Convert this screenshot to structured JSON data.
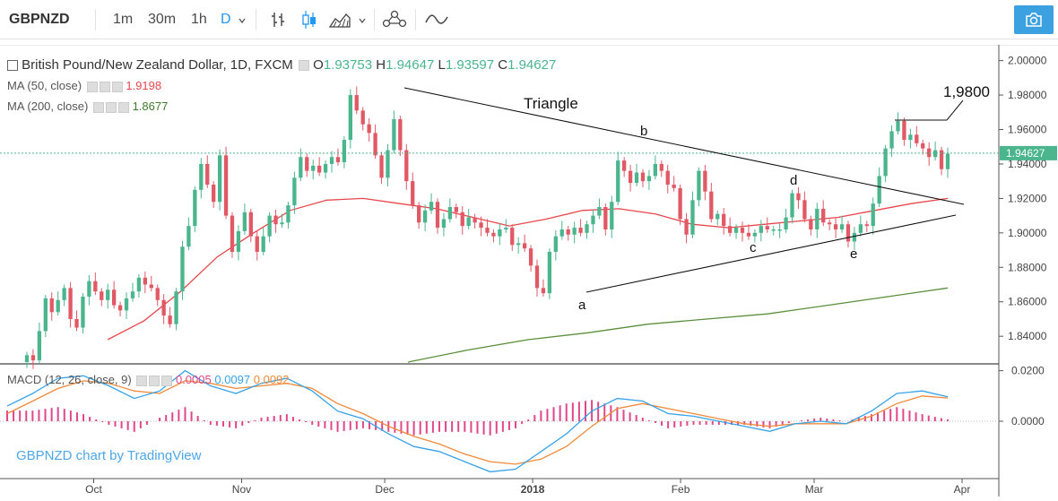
{
  "toolbar": {
    "symbol": "GBPNZD",
    "intervals": [
      "1m",
      "30m",
      "1h",
      "D"
    ],
    "active_interval": "D"
  },
  "legend": {
    "title": "British Pound/New Zealand Dollar, 1D, FXCM",
    "o_label": "O",
    "o_value": "1.93753",
    "h_label": "H",
    "h_value": "1.94647",
    "l_label": "L",
    "l_value": "1.93597",
    "c_label": "C",
    "c_value": "1.94627",
    "ma50_label": "MA (50, close)",
    "ma50_value": "1.9198",
    "ma200_label": "MA (200, close)",
    "ma200_value": "1.8677",
    "macd_label": "MACD (12, 26, close, 9)",
    "macd_v1": "0.0005",
    "macd_v2": "0.0097",
    "macd_v3": "0.0092"
  },
  "watermark": "GBPNZD chart by TradingView",
  "colors": {
    "up": "#4bb58e",
    "down": "#e05965",
    "ma50": "#e8464b",
    "ma200": "#5a8f3b",
    "macd": "#37a2e6",
    "signal": "#f08a3a",
    "hist": "#e0478a",
    "accent": "#2196f3"
  },
  "chart_data": {
    "type": "candlestick",
    "price_axis": {
      "ylim": [
        1.825,
        2.005
      ],
      "ticks": [
        "2.00000",
        "1.98000",
        "1.96000",
        "1.94000",
        "1.92000",
        "1.90000",
        "1.88000",
        "1.86000",
        "1.84000"
      ],
      "last_price": "1.94627"
    },
    "macd_axis": {
      "ylim": [
        -0.022,
        0.022
      ],
      "ticks": [
        "0.0200",
        "0.0000"
      ]
    },
    "x_axis": {
      "start_date": "2017-09-17",
      "end_date": "2018-04-01",
      "labels": [
        {
          "date": "2017-10-01",
          "text": "Oct"
        },
        {
          "date": "2017-11-01",
          "text": "Nov"
        },
        {
          "date": "2017-12-01",
          "text": "Dec"
        },
        {
          "date": "2018-01-01",
          "text": "2018"
        },
        {
          "date": "2018-02-01",
          "text": "Feb"
        },
        {
          "date": "2018-03-01",
          "text": "Mar"
        },
        {
          "date": "2018-04-01",
          "text": "Apr"
        }
      ]
    },
    "closes": [
      1.829,
      1.826,
      1.843,
      1.862,
      1.854,
      1.861,
      1.868,
      1.85,
      1.845,
      1.863,
      1.872,
      1.866,
      1.861,
      1.867,
      1.858,
      1.855,
      1.862,
      1.866,
      1.874,
      1.87,
      1.868,
      1.861,
      1.852,
      1.847,
      1.866,
      1.892,
      1.904,
      1.925,
      1.94,
      1.928,
      1.918,
      1.945,
      1.91,
      1.889,
      1.901,
      1.912,
      1.898,
      1.889,
      1.898,
      1.91,
      1.905,
      1.906,
      1.916,
      1.932,
      1.944,
      1.936,
      1.939,
      1.935,
      1.94,
      1.944,
      1.941,
      1.954,
      1.98,
      1.971,
      1.963,
      1.958,
      1.945,
      1.932,
      1.948,
      1.966,
      1.948,
      1.93,
      1.916,
      1.906,
      1.913,
      1.918,
      1.903,
      1.908,
      1.915,
      1.912,
      1.904,
      1.909,
      1.906,
      1.903,
      1.9,
      1.898,
      1.902,
      1.903,
      1.893,
      1.894,
      1.891,
      1.881,
      1.868,
      1.865,
      1.889,
      1.898,
      1.902,
      1.899,
      1.903,
      1.9,
      1.905,
      1.91,
      1.915,
      1.902,
      1.918,
      1.942,
      1.936,
      1.929,
      1.935,
      1.93,
      1.933,
      1.94,
      1.936,
      1.928,
      1.926,
      1.908,
      1.899,
      1.919,
      1.936,
      1.924,
      1.908,
      1.911,
      1.904,
      1.9,
      1.903,
      1.9,
      1.898,
      1.9,
      1.904,
      1.902,
      1.902,
      1.902,
      1.909,
      1.923,
      1.919,
      1.908,
      1.902,
      1.914,
      1.906,
      1.905,
      1.902,
      1.905,
      1.895,
      1.9,
      1.905,
      1.904,
      1.917,
      1.933,
      1.949,
      1.959,
      1.965,
      1.954,
      1.957,
      1.952,
      1.949,
      1.944,
      1.948,
      1.937,
      1.946
    ],
    "series": [
      {
        "name": "MA (50, close)",
        "values": [
          1.838,
          1.849,
          1.866,
          1.886,
          1.9,
          1.913,
          1.919,
          1.92,
          1.917,
          1.914,
          1.909,
          1.904,
          1.908,
          1.913,
          1.914,
          1.911,
          1.905,
          1.903,
          1.905,
          1.907,
          1.909,
          1.913,
          1.917,
          1.92
        ]
      },
      {
        "name": "MA (200, close)",
        "values": [
          1.825,
          1.832,
          1.838,
          1.842,
          1.847,
          1.85,
          1.853,
          1.858,
          1.863,
          1.868
        ]
      },
      {
        "name": "MACD",
        "values": [
          0.006,
          0.011,
          0.017,
          0.018,
          0.014,
          0.009,
          0.012,
          0.02,
          0.014,
          0.011,
          0.015,
          0.017,
          0.012,
          0.004,
          0.001,
          -0.005,
          -0.01,
          -0.012,
          -0.016,
          -0.02,
          -0.019,
          -0.012,
          -0.005,
          0.004,
          0.009,
          0.008,
          0.003,
          0.002,
          0.0,
          -0.002,
          -0.004,
          -0.001,
          0.0,
          -0.001,
          0.004,
          0.011,
          0.012,
          0.0097
        ]
      },
      {
        "name": "Signal",
        "values": [
          0.003,
          0.008,
          0.013,
          0.016,
          0.015,
          0.012,
          0.011,
          0.016,
          0.015,
          0.013,
          0.014,
          0.015,
          0.013,
          0.007,
          0.003,
          -0.002,
          -0.006,
          -0.009,
          -0.013,
          -0.016,
          -0.017,
          -0.015,
          -0.01,
          -0.002,
          0.005,
          0.007,
          0.005,
          0.003,
          0.001,
          -0.001,
          -0.002,
          -0.001,
          -0.001,
          -0.001,
          0.002,
          0.007,
          0.01,
          0.0092
        ]
      }
    ]
  },
  "annotations": {
    "triangle": "Triangle",
    "target": "1,9800",
    "a": "a",
    "b": "b",
    "c": "c",
    "d": "d",
    "e": "e"
  }
}
